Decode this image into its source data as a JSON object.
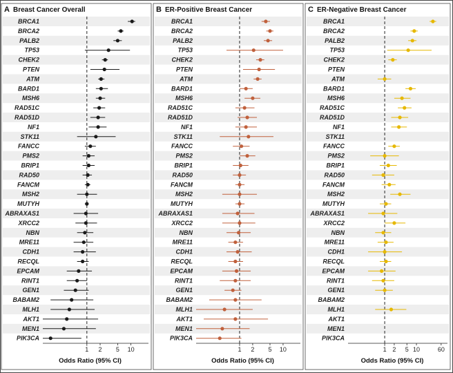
{
  "figure": {
    "background": "#ffffff",
    "row_stripe_color": "#eeeeee",
    "frame_color": "#444444"
  },
  "chart_data": [
    {
      "type": "forest",
      "letter": "A",
      "title": "Breast Cancer Overall",
      "xlabel": "Odds Ratio (95% CI)",
      "x_scale": "log",
      "xlim": [
        0.1,
        25
      ],
      "ticks": [
        1,
        2,
        5,
        10
      ],
      "tick_labels": [
        "1",
        "2",
        "5",
        "10"
      ],
      "reference_line": 1,
      "color": "#1a1a1a",
      "genes": [
        "BRCA1",
        "BRCA2",
        "PALB2",
        "TP53",
        "CHEK2",
        "PTEN",
        "ATM",
        "BARD1",
        "MSH6",
        "RAD51C",
        "RAD51D",
        "NF1",
        "STK11",
        "FANCC",
        "PMS2",
        "BRIP1",
        "RAD50",
        "FANCM",
        "MSH2",
        "MUTYH",
        "ABRAXAS1",
        "XRCC2",
        "NBN",
        "MRE11",
        "CDH1",
        "RECQL",
        "EPCAM",
        "RINT1",
        "GEN1",
        "BABAM2",
        "MLH1",
        "AKT1",
        "MEN1",
        "PIK3CA"
      ],
      "or": [
        10.6,
        5.9,
        5.0,
        3.1,
        2.6,
        2.5,
        2.1,
        2.1,
        2.0,
        1.9,
        1.8,
        1.8,
        1.6,
        1.2,
        1.1,
        1.1,
        1.05,
        1.05,
        1.0,
        1.0,
        0.95,
        0.95,
        0.9,
        0.85,
        0.8,
        0.8,
        0.65,
        0.6,
        0.55,
        0.45,
        0.4,
        0.35,
        0.3,
        0.15
      ],
      "ci_low": [
        8.5,
        5.0,
        4.0,
        0.9,
        2.2,
        1.2,
        1.8,
        1.6,
        1.6,
        1.4,
        1.2,
        1.1,
        0.6,
        0.9,
        0.8,
        0.8,
        0.8,
        0.9,
        0.6,
        0.9,
        0.5,
        0.55,
        0.6,
        0.5,
        0.5,
        0.6,
        0.35,
        0.35,
        0.3,
        0.15,
        0.15,
        0.1,
        0.1,
        0.1
      ],
      "ci_high": [
        12.5,
        6.8,
        6.2,
        9.5,
        3.0,
        5.5,
        2.5,
        3.0,
        2.6,
        2.6,
        2.6,
        2.8,
        4.5,
        1.6,
        1.5,
        1.5,
        1.3,
        1.2,
        1.7,
        1.1,
        1.8,
        1.7,
        1.4,
        1.4,
        1.6,
        1.1,
        1.3,
        1.0,
        1.1,
        1.4,
        1.5,
        1.8,
        1.6,
        0.75
      ]
    },
    {
      "type": "forest",
      "letter": "B",
      "title": "ER-Positive Breast Cancer",
      "xlabel": "Odds Ratio (95% CI)",
      "x_scale": "log",
      "xlim": [
        0.1,
        25
      ],
      "ticks": [
        1,
        2,
        5,
        10
      ],
      "tick_labels": [
        "1",
        "2",
        "5",
        "10"
      ],
      "reference_line": 1,
      "color": "#c0603c",
      "genes": [
        "BRCA1",
        "BRCA2",
        "PALB2",
        "TP53",
        "CHEK2",
        "PTEN",
        "ATM",
        "BARD1",
        "MSH6",
        "RAD51C",
        "RAD51D",
        "NF1",
        "STK11",
        "FANCC",
        "PMS2",
        "BRIP1",
        "RAD50",
        "FANCM",
        "MSH2",
        "MUTYH",
        "ABRAXAS1",
        "XRCC2",
        "NBN",
        "MRE11",
        "CDH1",
        "RECQL",
        "EPCAM",
        "RINT1",
        "GEN1",
        "BABAM2",
        "MLH1",
        "AKT1",
        "MEN1",
        "PIK3CA"
      ],
      "or": [
        4.0,
        5.0,
        4.5,
        2.1,
        3.0,
        2.8,
        2.6,
        1.4,
        2.0,
        1.3,
        1.5,
        1.4,
        1.6,
        1.1,
        1.5,
        1.05,
        1.0,
        1.0,
        1.0,
        1.0,
        0.9,
        1.0,
        0.95,
        0.8,
        0.9,
        0.8,
        0.85,
        0.8,
        0.7,
        0.8,
        0.45,
        0.8,
        0.4,
        0.35
      ],
      "ci_low": [
        3.2,
        4.1,
        3.6,
        0.5,
        2.4,
        1.2,
        2.1,
        1.0,
        1.3,
        0.8,
        0.9,
        0.8,
        0.35,
        0.7,
        1.0,
        0.7,
        0.7,
        0.8,
        0.4,
        0.8,
        0.4,
        0.4,
        0.5,
        0.55,
        0.5,
        0.55,
        0.4,
        0.35,
        0.45,
        0.2,
        0.1,
        0.15,
        0.1,
        0.1
      ],
      "ci_high": [
        5.0,
        6.0,
        5.6,
        10.0,
        3.7,
        6.5,
        3.2,
        2.0,
        3.0,
        2.2,
        2.5,
        2.5,
        6.0,
        1.7,
        2.3,
        1.6,
        1.4,
        1.3,
        2.5,
        1.3,
        2.2,
        2.3,
        1.8,
        1.2,
        1.9,
        1.2,
        1.8,
        1.8,
        1.1,
        3.2,
        2.0,
        4.5,
        1.7,
        1.1
      ]
    },
    {
      "type": "forest",
      "letter": "C",
      "title": "ER-Negative Breast Cancer",
      "xlabel": "Odds Ratio (95% CI)",
      "x_scale": "log",
      "xlim": [
        0.07,
        95
      ],
      "ticks": [
        1,
        2,
        5,
        10,
        60
      ],
      "tick_labels": [
        "1",
        "2",
        "5",
        "10",
        "60"
      ],
      "reference_line": 1,
      "color": "#e6b800",
      "genes": [
        "BRCA1",
        "BRCA2",
        "PALB2",
        "TP53",
        "CHEK2",
        "PTEN",
        "ATM",
        "BARD1",
        "MSH6",
        "RAD51C",
        "RAD51D",
        "NF1",
        "STK11",
        "FANCC",
        "PMS2",
        "BRIP1",
        "RAD50",
        "FANCM",
        "MSH2",
        "MUTYH",
        "ABRAXAS1",
        "XRCC2",
        "NBN",
        "MRE11",
        "CDH1",
        "RECQL",
        "EPCAM",
        "RINT1",
        "GEN1",
        "BABAM2",
        "MLH1",
        "AKT1",
        "MEN1",
        "PIK3CA"
      ],
      "or": [
        33.0,
        8.5,
        7.5,
        5.5,
        1.8,
        null,
        1.0,
        6.5,
        3.5,
        4.2,
        3.0,
        2.8,
        null,
        2.0,
        1.0,
        1.3,
        0.9,
        1.4,
        3.0,
        1.1,
        0.9,
        2.0,
        0.9,
        1.1,
        1.0,
        1.1,
        0.8,
        0.9,
        1.0,
        null,
        1.6,
        null,
        null,
        null
      ],
      "ci_low": [
        26.0,
        6.5,
        5.5,
        1.2,
        1.3,
        null,
        0.6,
        4.5,
        2.0,
        2.6,
        1.6,
        1.6,
        null,
        1.3,
        0.35,
        0.7,
        0.4,
        0.8,
        1.5,
        0.7,
        0.3,
        1.0,
        0.5,
        0.6,
        0.3,
        0.7,
        0.3,
        0.4,
        0.5,
        null,
        0.5,
        null,
        null,
        null
      ],
      "ci_high": [
        42.0,
        11.0,
        10.0,
        30.0,
        2.4,
        null,
        1.6,
        9.5,
        6.5,
        7.0,
        5.5,
        5.0,
        null,
        3.0,
        2.8,
        2.4,
        2.0,
        2.2,
        6.5,
        1.6,
        2.5,
        4.5,
        1.6,
        1.9,
        3.5,
        1.6,
        2.2,
        2.0,
        1.8,
        null,
        4.8,
        null,
        null,
        null
      ]
    }
  ]
}
